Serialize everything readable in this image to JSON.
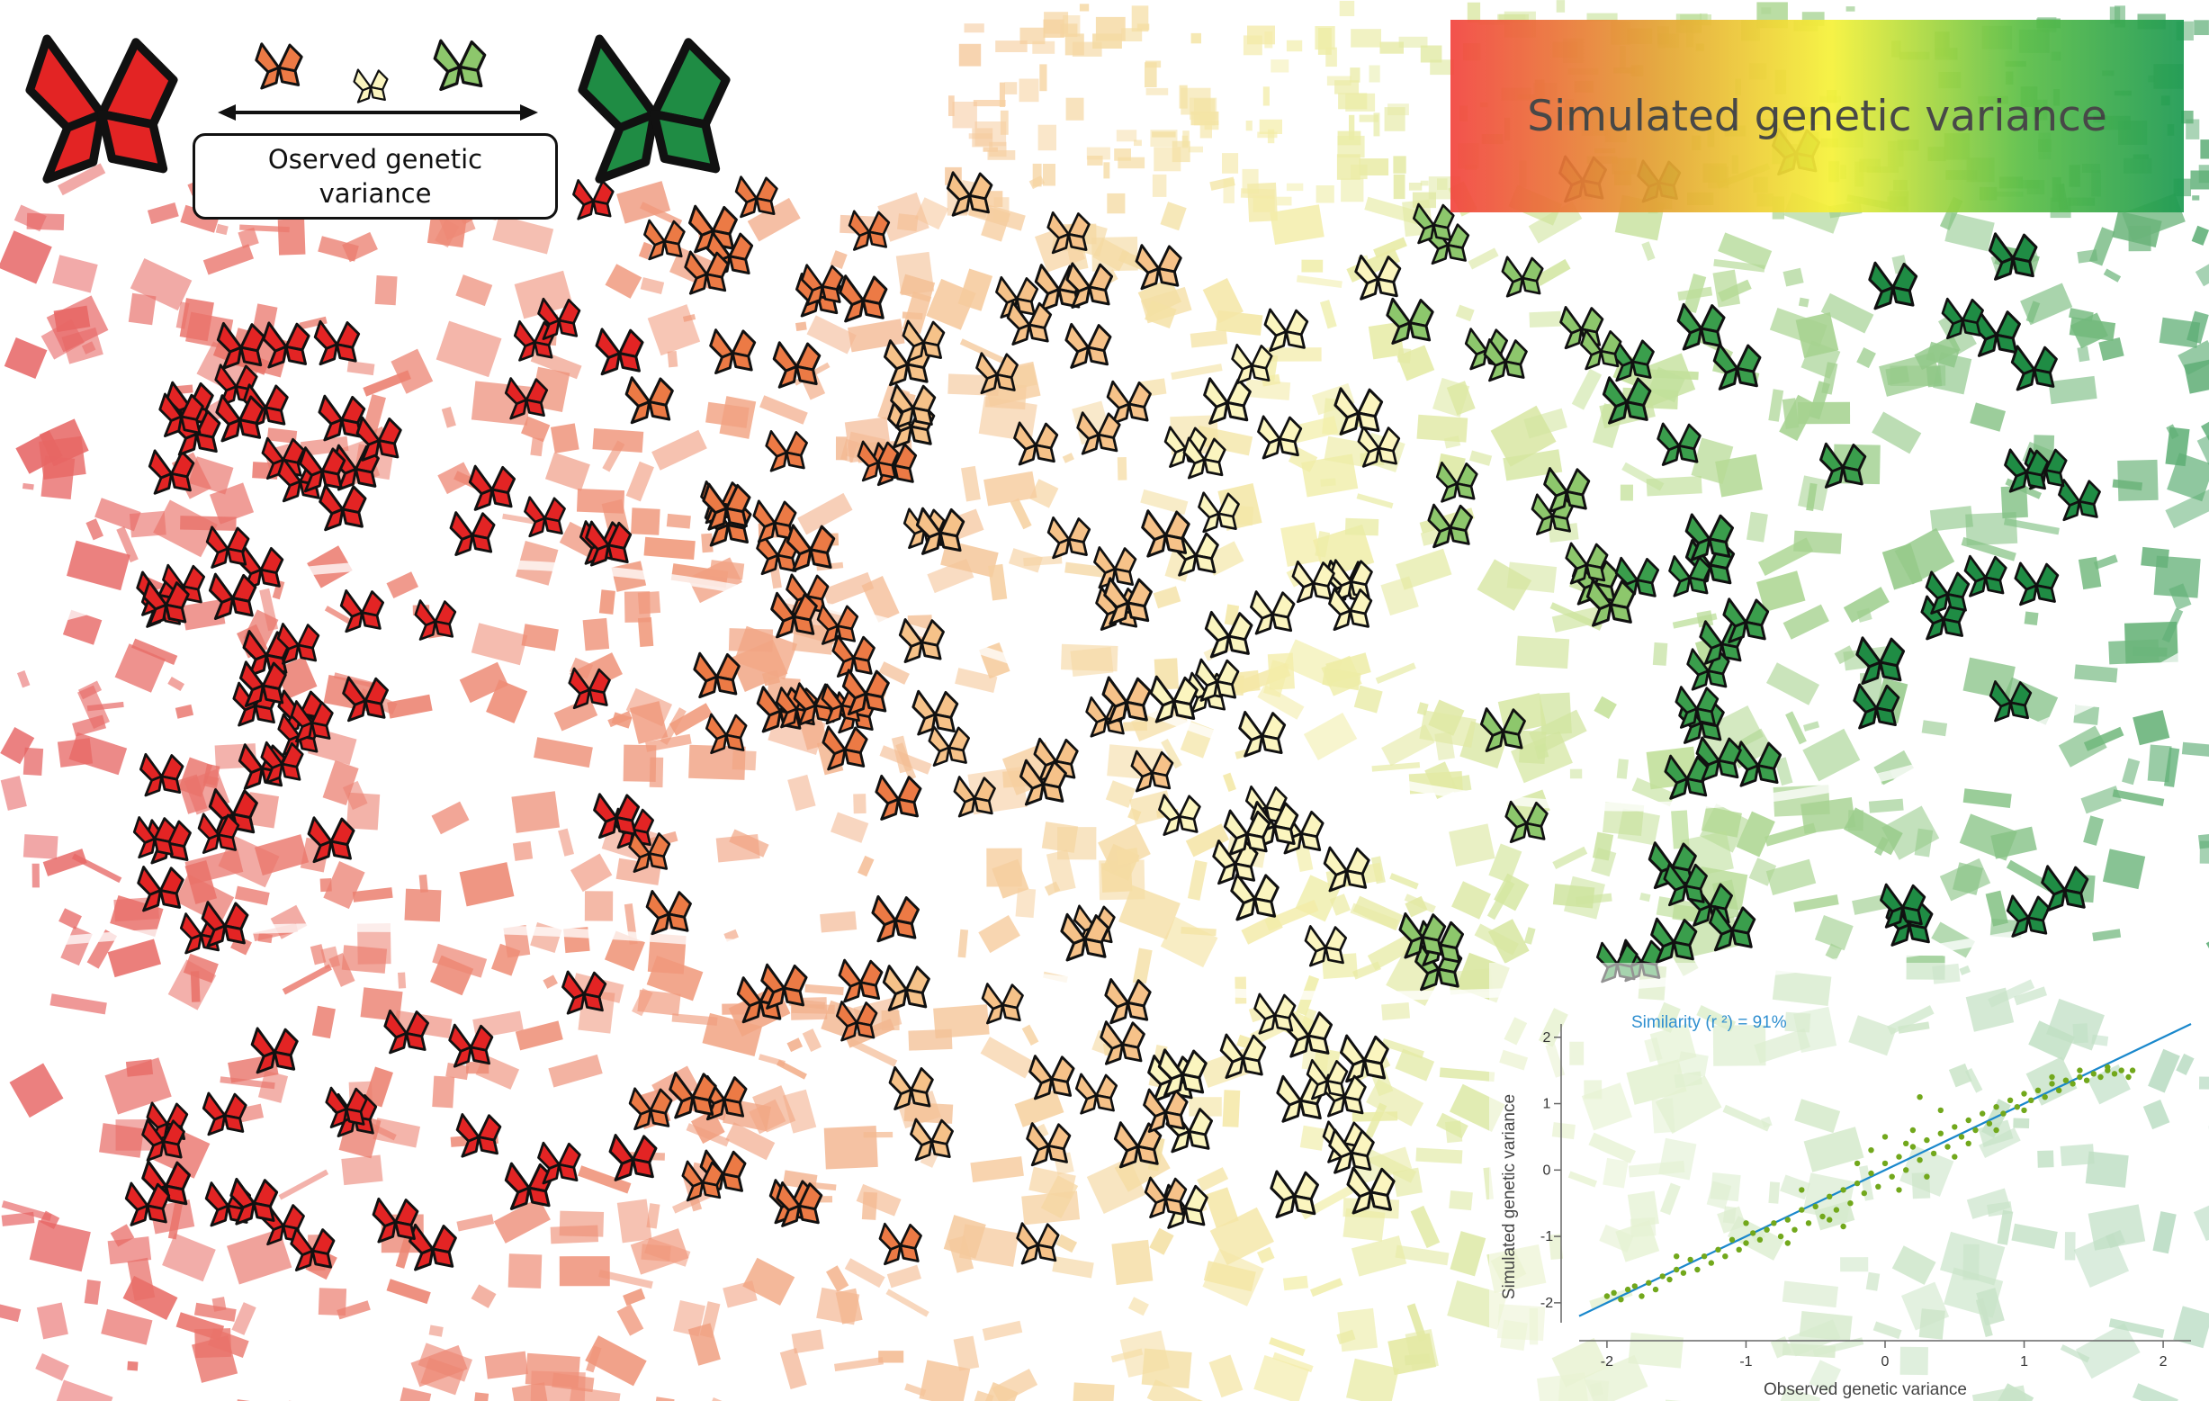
{
  "legend": {
    "observed_label": "Oserved genetic variance",
    "observed_line1": "Oserved genetic",
    "observed_line2": "variance",
    "simulated_label": "Simulated genetic variance"
  },
  "colors": {
    "red": "#e32424",
    "orange": "#ec7a45",
    "light_orange": "#f6c289",
    "pale_yellow": "#fbf5bf",
    "light_green": "#8dc76c",
    "green": "#3a9e4c",
    "dark_green": "#1f8c44",
    "regression_line": "#1a88cc",
    "points": "#72a81c"
  },
  "icons": {
    "legend_low": "butterfly-icon",
    "legend_high": "butterfly-icon",
    "map_markers": "butterfly-icon"
  },
  "chart_data": {
    "type": "scatter",
    "title": "",
    "xlabel": "Observed genetic variance",
    "ylabel": "Simulated genetic variance",
    "annotation": "Similarity (r ²) = 91%",
    "xlim": [
      -2.2,
      2.2
    ],
    "ylim": [
      -2.3,
      2.2
    ],
    "x_ticks": [
      -2,
      -1,
      0,
      1,
      2
    ],
    "y_ticks": [
      -2,
      -1,
      0,
      1,
      2
    ],
    "regression": {
      "slope": 1.0,
      "intercept": 0.0
    },
    "points": [
      [
        -2.0,
        -1.9
      ],
      [
        -1.95,
        -1.85
      ],
      [
        -1.9,
        -1.95
      ],
      [
        -1.85,
        -1.8
      ],
      [
        -1.8,
        -1.75
      ],
      [
        -1.75,
        -1.9
      ],
      [
        -1.7,
        -1.7
      ],
      [
        -1.65,
        -1.8
      ],
      [
        -1.6,
        -1.6
      ],
      [
        -1.55,
        -1.65
      ],
      [
        -1.5,
        -1.5
      ],
      [
        -1.45,
        -1.55
      ],
      [
        -1.4,
        -1.35
      ],
      [
        -1.35,
        -1.5
      ],
      [
        -1.3,
        -1.3
      ],
      [
        -1.25,
        -1.4
      ],
      [
        -1.2,
        -1.2
      ],
      [
        -1.15,
        -1.3
      ],
      [
        -1.1,
        -1.05
      ],
      [
        -1.05,
        -1.2
      ],
      [
        -1.0,
        -1.1
      ],
      [
        -0.95,
        -0.95
      ],
      [
        -0.9,
        -1.05
      ],
      [
        -0.85,
        -0.9
      ],
      [
        -0.8,
        -0.8
      ],
      [
        -0.75,
        -1.0
      ],
      [
        -0.7,
        -0.75
      ],
      [
        -0.65,
        -0.9
      ],
      [
        -0.6,
        -0.6
      ],
      [
        -0.55,
        -0.8
      ],
      [
        -0.5,
        -0.55
      ],
      [
        -0.45,
        -0.7
      ],
      [
        -0.4,
        -0.4
      ],
      [
        -0.35,
        -0.6
      ],
      [
        -0.3,
        -0.3
      ],
      [
        -0.25,
        -0.5
      ],
      [
        -0.2,
        -0.2
      ],
      [
        -0.15,
        -0.35
      ],
      [
        -0.1,
        -0.05
      ],
      [
        -0.05,
        -0.25
      ],
      [
        0.0,
        0.1
      ],
      [
        0.05,
        -0.1
      ],
      [
        0.1,
        0.2
      ],
      [
        0.15,
        0.0
      ],
      [
        0.2,
        0.35
      ],
      [
        0.25,
        0.15
      ],
      [
        0.3,
        0.45
      ],
      [
        0.35,
        0.25
      ],
      [
        0.4,
        0.55
      ],
      [
        0.45,
        0.35
      ],
      [
        0.5,
        0.65
      ],
      [
        0.55,
        0.5
      ],
      [
        0.6,
        0.75
      ],
      [
        0.65,
        0.6
      ],
      [
        0.7,
        0.85
      ],
      [
        0.75,
        0.7
      ],
      [
        0.8,
        0.95
      ],
      [
        0.85,
        0.85
      ],
      [
        0.9,
        1.05
      ],
      [
        0.95,
        0.95
      ],
      [
        1.0,
        1.15
      ],
      [
        1.05,
        1.05
      ],
      [
        1.1,
        1.2
      ],
      [
        1.15,
        1.1
      ],
      [
        1.2,
        1.3
      ],
      [
        1.25,
        1.2
      ],
      [
        1.3,
        1.35
      ],
      [
        1.35,
        1.3
      ],
      [
        1.4,
        1.4
      ],
      [
        1.45,
        1.35
      ],
      [
        1.5,
        1.45
      ],
      [
        1.55,
        1.4
      ],
      [
        1.6,
        1.5
      ],
      [
        1.65,
        1.45
      ],
      [
        1.7,
        1.5
      ],
      [
        1.75,
        1.4
      ],
      [
        1.78,
        1.5
      ],
      [
        -1.5,
        -1.3
      ],
      [
        -1.0,
        -0.8
      ],
      [
        -0.7,
        -1.1
      ],
      [
        -0.4,
        -0.75
      ],
      [
        -0.2,
        0.1
      ],
      [
        0.1,
        -0.3
      ],
      [
        0.2,
        0.6
      ],
      [
        0.3,
        -0.1
      ],
      [
        0.4,
        0.9
      ],
      [
        0.6,
        0.4
      ],
      [
        0.8,
        0.6
      ],
      [
        1.0,
        0.9
      ],
      [
        -0.1,
        0.3
      ],
      [
        0.0,
        0.5
      ],
      [
        0.25,
        1.1
      ],
      [
        0.5,
        0.2
      ],
      [
        -0.6,
        -0.3
      ],
      [
        -0.3,
        -0.85
      ],
      [
        0.15,
        0.4
      ],
      [
        1.2,
        1.4
      ],
      [
        1.4,
        1.5
      ],
      [
        1.6,
        1.55
      ]
    ]
  }
}
